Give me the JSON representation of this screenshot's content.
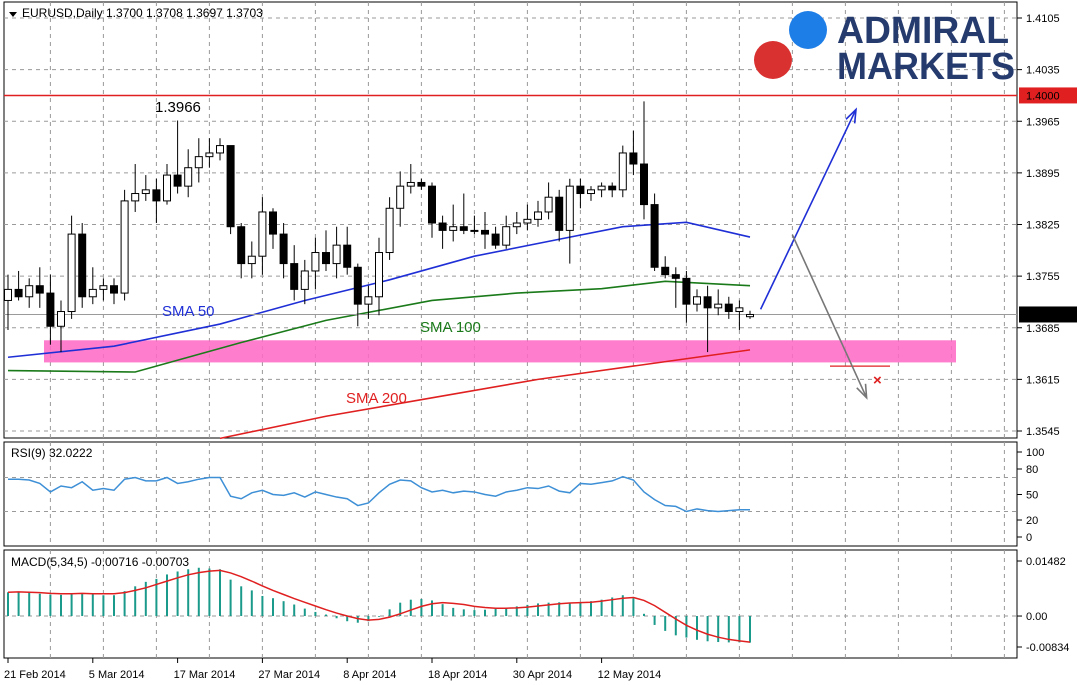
{
  "chart_data": [
    {
      "type": "candlestick",
      "header": "EURUSD,Daily  1.3700 1.3708 1.3697 1.3703",
      "symbol": "EURUSD",
      "timeframe": "Daily",
      "ohlc_last": {
        "open": 1.37,
        "high": 1.3708,
        "low": 1.3697,
        "close": 1.3703
      },
      "ylim": [
        1.3545,
        1.4105
      ],
      "yticks": [
        "1.4105",
        "1.4035",
        "1.3965",
        "1.3895",
        "1.3825",
        "1.3755",
        "1.3685",
        "1.3615",
        "1.3545"
      ],
      "xticks": [
        "21 Feb 2014",
        "5 Mar 2014",
        "17 Mar 2014",
        "27 Mar 2014",
        "8 Apr 2014",
        "18 Apr 2014",
        "30 Apr 2014",
        "12 May 2014"
      ],
      "xtick_index": [
        0,
        8,
        16,
        24,
        32,
        40,
        48,
        56
      ],
      "grid": true,
      "candles": [
        [
          1.3722,
          1.3757,
          1.3682,
          1.3737
        ],
        [
          1.3737,
          1.3762,
          1.3722,
          1.3727
        ],
        [
          1.3727,
          1.3752,
          1.3712,
          1.3742
        ],
        [
          1.3742,
          1.3767,
          1.3712,
          1.3732
        ],
        [
          1.3732,
          1.3757,
          1.3662,
          1.3687
        ],
        [
          1.3687,
          1.3722,
          1.3652,
          1.3707
        ],
        [
          1.3707,
          1.3837,
          1.3697,
          1.3812
        ],
        [
          1.3812,
          1.3827,
          1.3712,
          1.3727
        ],
        [
          1.3727,
          1.3767,
          1.3717,
          1.3737
        ],
        [
          1.3737,
          1.3752,
          1.3722,
          1.3742
        ],
        [
          1.3742,
          1.3752,
          1.3717,
          1.3732
        ],
        [
          1.3732,
          1.3872,
          1.3722,
          1.3857
        ],
        [
          1.3857,
          1.3907,
          1.3842,
          1.3867
        ],
        [
          1.3867,
          1.3892,
          1.3857,
          1.3872
        ],
        [
          1.3872,
          1.3887,
          1.3827,
          1.3857
        ],
        [
          1.3857,
          1.3907,
          1.3852,
          1.3892
        ],
        [
          1.3892,
          1.3966,
          1.3867,
          1.3877
        ],
        [
          1.3877,
          1.3927,
          1.3862,
          1.3902
        ],
        [
          1.3902,
          1.3942,
          1.3882,
          1.3917
        ],
        [
          1.3917,
          1.3942,
          1.3902,
          1.3922
        ],
        [
          1.3922,
          1.3942,
          1.3912,
          1.3932
        ],
        [
          1.3932,
          1.3932,
          1.3812,
          1.3822
        ],
        [
          1.3822,
          1.3827,
          1.3752,
          1.3772
        ],
        [
          1.3772,
          1.3802,
          1.3752,
          1.3782
        ],
        [
          1.3782,
          1.3862,
          1.3757,
          1.3842
        ],
        [
          1.3842,
          1.3847,
          1.3792,
          1.3812
        ],
        [
          1.3812,
          1.3827,
          1.3752,
          1.3772
        ],
        [
          1.3772,
          1.3797,
          1.3722,
          1.3737
        ],
        [
          1.3737,
          1.3777,
          1.3717,
          1.3762
        ],
        [
          1.3762,
          1.3807,
          1.3737,
          1.3787
        ],
        [
          1.3787,
          1.3817,
          1.3762,
          1.3772
        ],
        [
          1.3772,
          1.3822,
          1.3752,
          1.3797
        ],
        [
          1.3797,
          1.3822,
          1.3757,
          1.3767
        ],
        [
          1.3767,
          1.3772,
          1.3687,
          1.3717
        ],
        [
          1.3717,
          1.3742,
          1.3697,
          1.3727
        ],
        [
          1.3727,
          1.3807,
          1.3702,
          1.3787
        ],
        [
          1.3787,
          1.3862,
          1.3777,
          1.3847
        ],
        [
          1.3847,
          1.3897,
          1.3822,
          1.3877
        ],
        [
          1.3877,
          1.3907,
          1.3867,
          1.3882
        ],
        [
          1.3882,
          1.3887,
          1.3872,
          1.3877
        ],
        [
          1.3877,
          1.3882,
          1.3807,
          1.3827
        ],
        [
          1.3827,
          1.3837,
          1.3792,
          1.3817
        ],
        [
          1.3817,
          1.3852,
          1.3802,
          1.3822
        ],
        [
          1.3822,
          1.3867,
          1.3812,
          1.3817
        ],
        [
          1.3817,
          1.3837,
          1.3812,
          1.3817
        ],
        [
          1.3817,
          1.3842,
          1.3792,
          1.3812
        ],
        [
          1.3812,
          1.3822,
          1.3792,
          1.3797
        ],
        [
          1.3797,
          1.3837,
          1.3792,
          1.3822
        ],
        [
          1.3822,
          1.3842,
          1.3812,
          1.3827
        ],
        [
          1.3827,
          1.3852,
          1.3817,
          1.3832
        ],
        [
          1.3832,
          1.3857,
          1.3822,
          1.3842
        ],
        [
          1.3842,
          1.3882,
          1.3832,
          1.3862
        ],
        [
          1.3862,
          1.3872,
          1.3802,
          1.3817
        ],
        [
          1.3817,
          1.3887,
          1.3772,
          1.3877
        ],
        [
          1.3877,
          1.3887,
          1.3847,
          1.3867
        ],
        [
          1.3867,
          1.3877,
          1.3857,
          1.3872
        ],
        [
          1.3872,
          1.3882,
          1.3862,
          1.3877
        ],
        [
          1.3877,
          1.3882,
          1.3862,
          1.3872
        ],
        [
          1.3872,
          1.3932,
          1.3862,
          1.3922
        ],
        [
          1.3922,
          1.3952,
          1.3892,
          1.3907
        ],
        [
          1.3907,
          1.3992,
          1.3832,
          1.3852
        ],
        [
          1.3852,
          1.3867,
          1.3762,
          1.3767
        ],
        [
          1.3767,
          1.3782,
          1.3752,
          1.3757
        ],
        [
          1.3757,
          1.3767,
          1.3712,
          1.3752
        ],
        [
          1.3752,
          1.3762,
          1.3692,
          1.3717
        ],
        [
          1.3717,
          1.3737,
          1.3707,
          1.3727
        ],
        [
          1.3727,
          1.3742,
          1.3652,
          1.3712
        ],
        [
          1.3712,
          1.3737,
          1.3702,
          1.3717
        ],
        [
          1.3717,
          1.3727,
          1.3697,
          1.3707
        ],
        [
          1.3707,
          1.3722,
          1.3682,
          1.3712
        ],
        [
          1.37,
          1.3708,
          1.3697,
          1.3703
        ]
      ],
      "sma": [
        {
          "name": "SMA 50",
          "color": "#1f2fd6",
          "values": [
            [
              0,
              1.3645
            ],
            [
              10,
              1.366
            ],
            [
              20,
              1.369
            ],
            [
              28,
              1.3722
            ],
            [
              36,
              1.375
            ],
            [
              44,
              1.3782
            ],
            [
              52,
              1.3805
            ],
            [
              58,
              1.3822
            ],
            [
              64,
              1.3828
            ],
            [
              70,
              1.3808
            ]
          ]
        },
        {
          "name": "SMA 100",
          "color": "#1a7a1a",
          "values": [
            [
              0,
              1.3627
            ],
            [
              12,
              1.3625
            ],
            [
              22,
              1.3665
            ],
            [
              30,
              1.3695
            ],
            [
              40,
              1.3722
            ],
            [
              48,
              1.3732
            ],
            [
              56,
              1.3738
            ],
            [
              62,
              1.3748
            ],
            [
              70,
              1.3742
            ]
          ]
        },
        {
          "name": "SMA 200",
          "color": "#e02020",
          "values": [
            [
              20,
              1.3535
            ],
            [
              30,
              1.3565
            ],
            [
              40,
              1.359
            ],
            [
              50,
              1.3615
            ],
            [
              60,
              1.3635
            ],
            [
              70,
              1.3655
            ]
          ]
        }
      ],
      "levels": [
        {
          "value": 1.4,
          "label": "1.4000",
          "color": "#e02020"
        }
      ],
      "current": {
        "value": 1.3703,
        "label": "1.3703"
      },
      "zone": {
        "from": 1.3638,
        "to": 1.3668,
        "color": "#ff66c4"
      },
      "annotations": {
        "high_label": "1.3966",
        "sma50": "SMA 50",
        "sma100": "SMA 100",
        "sma200": "SMA 200",
        "invalid_marker": "×"
      },
      "scenarios": {
        "bullish": {
          "color": "#1f2fd6",
          "from": [
            71,
            1.371
          ],
          "to": [
            80,
            1.3981
          ]
        },
        "bearish": {
          "color": "#777777",
          "from": [
            74,
            1.3811
          ],
          "to": [
            81,
            1.359
          ]
        }
      },
      "brand": {
        "logo_text": [
          "ADMIRAL",
          "MARKETS"
        ],
        "text_color": "#253b6e",
        "dot_blue": "#1e7ee8",
        "dot_red": "#d93030"
      }
    },
    {
      "type": "line",
      "name": "RSI",
      "header": "RSI(9) 32.0222",
      "period": 9,
      "last": 32.0222,
      "ylim": [
        0,
        100
      ],
      "yticks": [
        "100",
        "80",
        "50",
        "20",
        "0"
      ],
      "levels": [
        70,
        30
      ],
      "color": "#3d8fd6",
      "values": [
        68,
        68,
        67,
        63,
        53,
        60,
        58,
        65,
        55,
        57,
        55,
        68,
        70,
        66,
        66,
        70,
        63,
        65,
        68,
        70,
        70,
        48,
        45,
        52,
        55,
        50,
        49,
        52,
        47,
        53,
        50,
        47,
        45,
        37,
        40,
        52,
        62,
        67,
        66,
        58,
        53,
        55,
        52,
        54,
        53,
        50,
        48,
        53,
        55,
        58,
        57,
        60,
        54,
        52,
        63,
        62,
        64,
        66,
        71,
        67,
        53,
        44,
        37,
        36,
        30,
        33,
        31,
        30,
        31,
        32,
        32
      ]
    },
    {
      "type": "bar+line",
      "name": "MACD",
      "header": "MACD(5,34,5) -0.00716 -0.00703",
      "params": "5,34,5",
      "last": [
        -0.00716,
        -0.00703
      ],
      "ylim": [
        -0.00834,
        0.01482
      ],
      "yticks": [
        "0.01482",
        "0.00",
        "-0.00834"
      ],
      "hist_color": "#1a9a8a",
      "signal_color": "#e02020",
      "hist": [
        0.0064,
        0.0066,
        0.0063,
        0.006,
        0.0058,
        0.0057,
        0.0058,
        0.0062,
        0.0058,
        0.0056,
        0.0056,
        0.0067,
        0.008,
        0.0092,
        0.01,
        0.0112,
        0.012,
        0.0126,
        0.013,
        0.0128,
        0.0126,
        0.0098,
        0.008,
        0.0069,
        0.0054,
        0.0048,
        0.004,
        0.0031,
        0.002,
        0.0011,
        0.0004,
        -0.0006,
        -0.0014,
        -0.0018,
        -0.0014,
        -0.0002,
        0.0018,
        0.0036,
        0.0044,
        0.0046,
        0.0042,
        0.0032,
        0.0022,
        0.0018,
        0.0016,
        0.0017,
        0.0019,
        0.0023,
        0.0026,
        0.003,
        0.0034,
        0.0036,
        0.0037,
        0.0036,
        0.0038,
        0.004,
        0.0044,
        0.005,
        0.0056,
        0.0048,
        0.0006,
        -0.0024,
        -0.004,
        -0.0052,
        -0.0058,
        -0.0064,
        -0.0068,
        -0.007,
        -0.0071,
        -0.0071,
        -0.00716
      ],
      "signal": [
        0.0064,
        0.0065,
        0.0064,
        0.0063,
        0.0061,
        0.006,
        0.006,
        0.0061,
        0.006,
        0.006,
        0.006,
        0.0063,
        0.0069,
        0.0076,
        0.0085,
        0.0094,
        0.0103,
        0.0111,
        0.0117,
        0.0121,
        0.0123,
        0.0116,
        0.0106,
        0.0094,
        0.0081,
        0.0069,
        0.0058,
        0.0047,
        0.0037,
        0.0027,
        0.0017,
        0.0008,
        0.0,
        -0.0007,
        -0.0011,
        -0.0009,
        -0.0003,
        0.0006,
        0.0016,
        0.0026,
        0.0033,
        0.0036,
        0.0034,
        0.0031,
        0.0026,
        0.0023,
        0.0021,
        0.0021,
        0.0022,
        0.0024,
        0.0027,
        0.003,
        0.0033,
        0.0035,
        0.0036,
        0.0037,
        0.004,
        0.0044,
        0.0048,
        0.005,
        0.0042,
        0.0028,
        0.001,
        -0.0008,
        -0.0025,
        -0.0038,
        -0.0049,
        -0.0057,
        -0.0063,
        -0.0067,
        -0.00703
      ]
    }
  ]
}
